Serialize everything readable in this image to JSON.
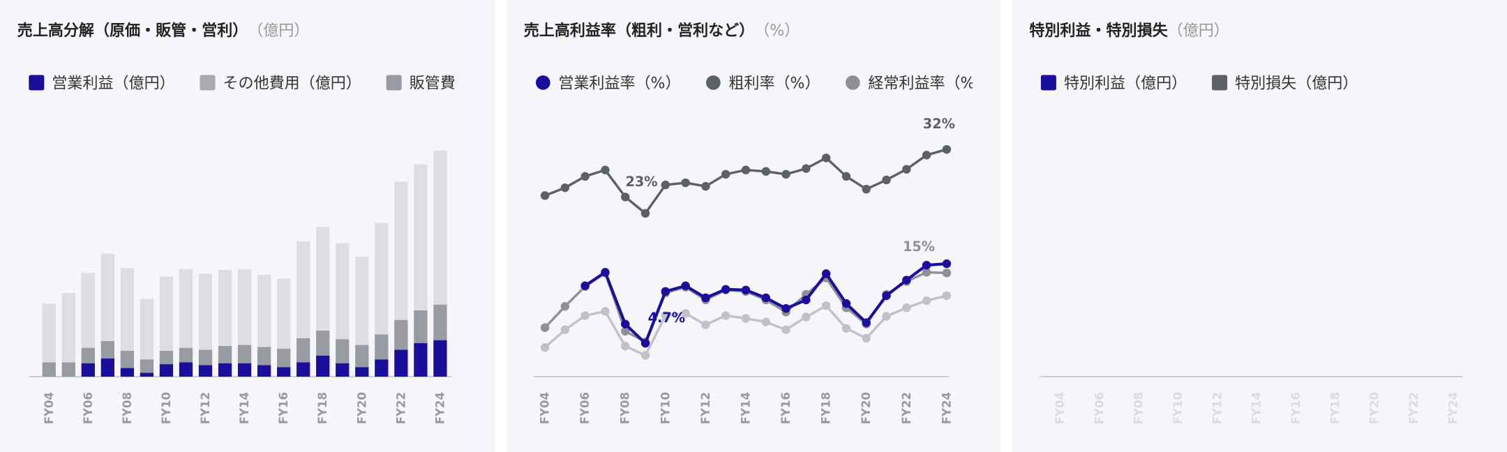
{
  "chart_data": [
    {
      "type": "bar",
      "stacked": true,
      "title": "売上高分解（原価・販管・営利）",
      "unit": "（億円）",
      "categories": [
        "FY04",
        null,
        "FY06",
        null,
        "FY08",
        null,
        "FY10",
        null,
        "FY12",
        null,
        "FY14",
        null,
        "FY16",
        null,
        "FY18",
        null,
        "FY20",
        null,
        "FY22",
        null,
        "FY24"
      ],
      "ylim": [
        0,
        272
      ],
      "series": [
        {
          "name": "営業利益（億円）",
          "color": "#1a0f9c",
          "values": [
            0,
            0,
            14,
            19,
            9,
            4,
            13,
            15,
            12,
            14,
            14,
            12,
            10,
            15,
            22,
            14,
            10,
            18,
            28,
            35,
            38
          ]
        },
        {
          "name": "その他費用（億円）",
          "color": "#aaabae",
          "values": [
            0,
            0,
            0,
            0,
            0,
            0,
            0,
            0,
            0,
            0,
            0,
            0,
            0,
            0,
            0,
            0,
            0,
            0,
            0,
            0,
            0
          ]
        },
        {
          "name": "販管費",
          "color": "#999ba2",
          "values": [
            15,
            15,
            16,
            18,
            18,
            14,
            14,
            15,
            16,
            18,
            19,
            19,
            19,
            25,
            26,
            25,
            23,
            26,
            31,
            34,
            37
          ]
        },
        {
          "color": "#dedee2",
          "values": [
            61,
            72,
            78,
            91,
            86,
            63,
            77,
            82,
            79,
            79,
            79,
            75,
            73,
            101,
            108,
            100,
            92,
            116,
            144,
            152,
            160
          ]
        }
      ]
    },
    {
      "type": "line",
      "title": "売上高利益率（粗利・営利など）",
      "unit": "（%）",
      "categories": [
        "FY04",
        null,
        "FY06",
        null,
        "FY08",
        null,
        "FY10",
        null,
        "FY12",
        null,
        "FY14",
        null,
        "FY16",
        null,
        "FY18",
        null,
        "FY20",
        null,
        "FY22",
        null,
        "FY24"
      ],
      "ylim": [
        0,
        36.8
      ],
      "series": [
        {
          "name": "営業利益率（%）",
          "color": "#1a0f9c",
          "values": [
            null,
            null,
            12.8,
            14.7,
            7.4,
            4.7,
            12.0,
            12.8,
            11.1,
            12.3,
            12.2,
            11.1,
            9.6,
            10.8,
            14.5,
            10.3,
            7.6,
            11.4,
            13.6,
            15.7,
            15.9
          ],
          "value_labels": [
            null,
            null,
            null,
            null,
            null,
            "4.7%",
            null,
            null,
            null,
            null,
            null,
            null,
            null,
            null,
            null,
            null,
            null,
            null,
            null,
            null,
            null
          ]
        },
        {
          "name": "粗利率（%）",
          "color": "#5c6168",
          "values": [
            25.5,
            26.6,
            28.2,
            29.1,
            25.3,
            23.0,
            27.0,
            27.3,
            26.8,
            28.5,
            29.1,
            28.9,
            28.5,
            29.3,
            30.8,
            28.2,
            26.4,
            27.7,
            29.2,
            31.2,
            32.0
          ],
          "value_labels": [
            null,
            null,
            null,
            null,
            null,
            "23%",
            null,
            null,
            null,
            null,
            null,
            null,
            null,
            null,
            null,
            null,
            null,
            null,
            null,
            null,
            "32%"
          ]
        },
        {
          "name": "経常利益率（%）",
          "color": "#8e9096",
          "values": [
            6.9,
            9.9,
            12.7,
            14.6,
            6.4,
            4.9,
            11.8,
            12.6,
            10.8,
            12.2,
            12.0,
            10.8,
            9.1,
            11.6,
            13.9,
            9.7,
            7.4,
            11.6,
            13.4,
            14.7,
            14.6
          ],
          "value_labels": [
            null,
            null,
            null,
            null,
            null,
            null,
            null,
            null,
            null,
            null,
            null,
            null,
            null,
            null,
            null,
            null,
            null,
            null,
            null,
            "15%",
            null
          ]
        },
        {
          "color": "#c2c2c6",
          "values": [
            4.1,
            6.6,
            8.6,
            9.2,
            4.3,
            3.0,
            8.6,
            8.9,
            7.3,
            8.6,
            8.2,
            7.7,
            6.6,
            8.4,
            10.0,
            6.8,
            5.4,
            8.5,
            9.7,
            10.7,
            11.4
          ]
        }
      ]
    },
    {
      "type": "bar",
      "stacked": true,
      "faded_axis": true,
      "title": "特別利益・特別損失",
      "unit": "（億円）",
      "categories": [
        "FY04",
        null,
        "FY06",
        null,
        "FY08",
        null,
        "FY10",
        null,
        "FY12",
        null,
        "FY14",
        null,
        "FY16",
        null,
        "FY18",
        null,
        "FY20",
        null,
        "FY22",
        null,
        "FY24"
      ],
      "ylim": [
        0,
        272
      ],
      "series": [
        {
          "name": "特別利益（億円）",
          "color": "#1a0f9c",
          "values": [
            null,
            null,
            null,
            null,
            null,
            null,
            null,
            null,
            null,
            null,
            null,
            null,
            null,
            null,
            null,
            null,
            null,
            null,
            null,
            null,
            null
          ]
        },
        {
          "name": "特別損失（億円）",
          "color": "#5c6168",
          "values": [
            null,
            null,
            null,
            null,
            null,
            null,
            null,
            null,
            null,
            null,
            null,
            null,
            null,
            null,
            null,
            null,
            null,
            null,
            null,
            null,
            null
          ]
        }
      ]
    }
  ]
}
